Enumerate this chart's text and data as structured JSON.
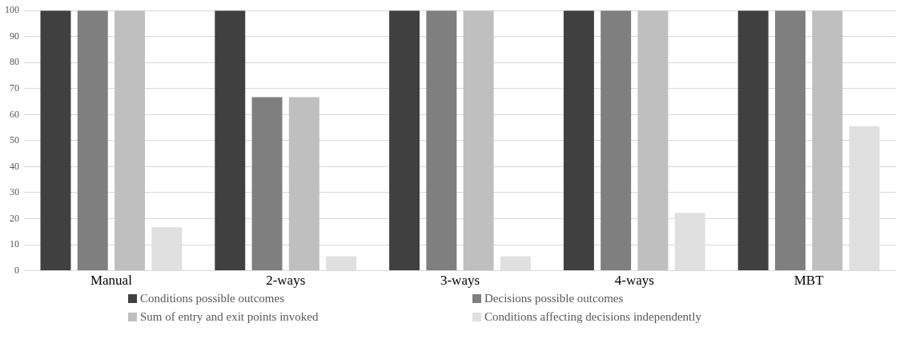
{
  "chart_data": {
    "type": "bar",
    "categories": [
      "Manual",
      "2-ways",
      "3-ways",
      "4-ways",
      "MBT"
    ],
    "series": [
      {
        "name": "Conditions possible outcomes",
        "color": "#404040",
        "values": [
          100,
          100,
          100,
          100,
          100
        ]
      },
      {
        "name": "Decisions possible outcomes",
        "color": "#7f7f7f",
        "values": [
          100,
          66.7,
          100,
          100,
          100
        ]
      },
      {
        "name": "Sum of entry and exit points invoked",
        "color": "#bfbfbf",
        "values": [
          100,
          66.7,
          100,
          100,
          100
        ]
      },
      {
        "name": "Conditions affecting decisions independently",
        "color": "#e0e0e0",
        "values": [
          16.7,
          5.6,
          5.6,
          22.2,
          55.6
        ]
      }
    ],
    "ylim": [
      0,
      100
    ],
    "yticks": [
      0,
      10,
      20,
      30,
      40,
      50,
      60,
      70,
      80,
      90,
      100
    ],
    "grid": "y",
    "legend": "bottom"
  }
}
